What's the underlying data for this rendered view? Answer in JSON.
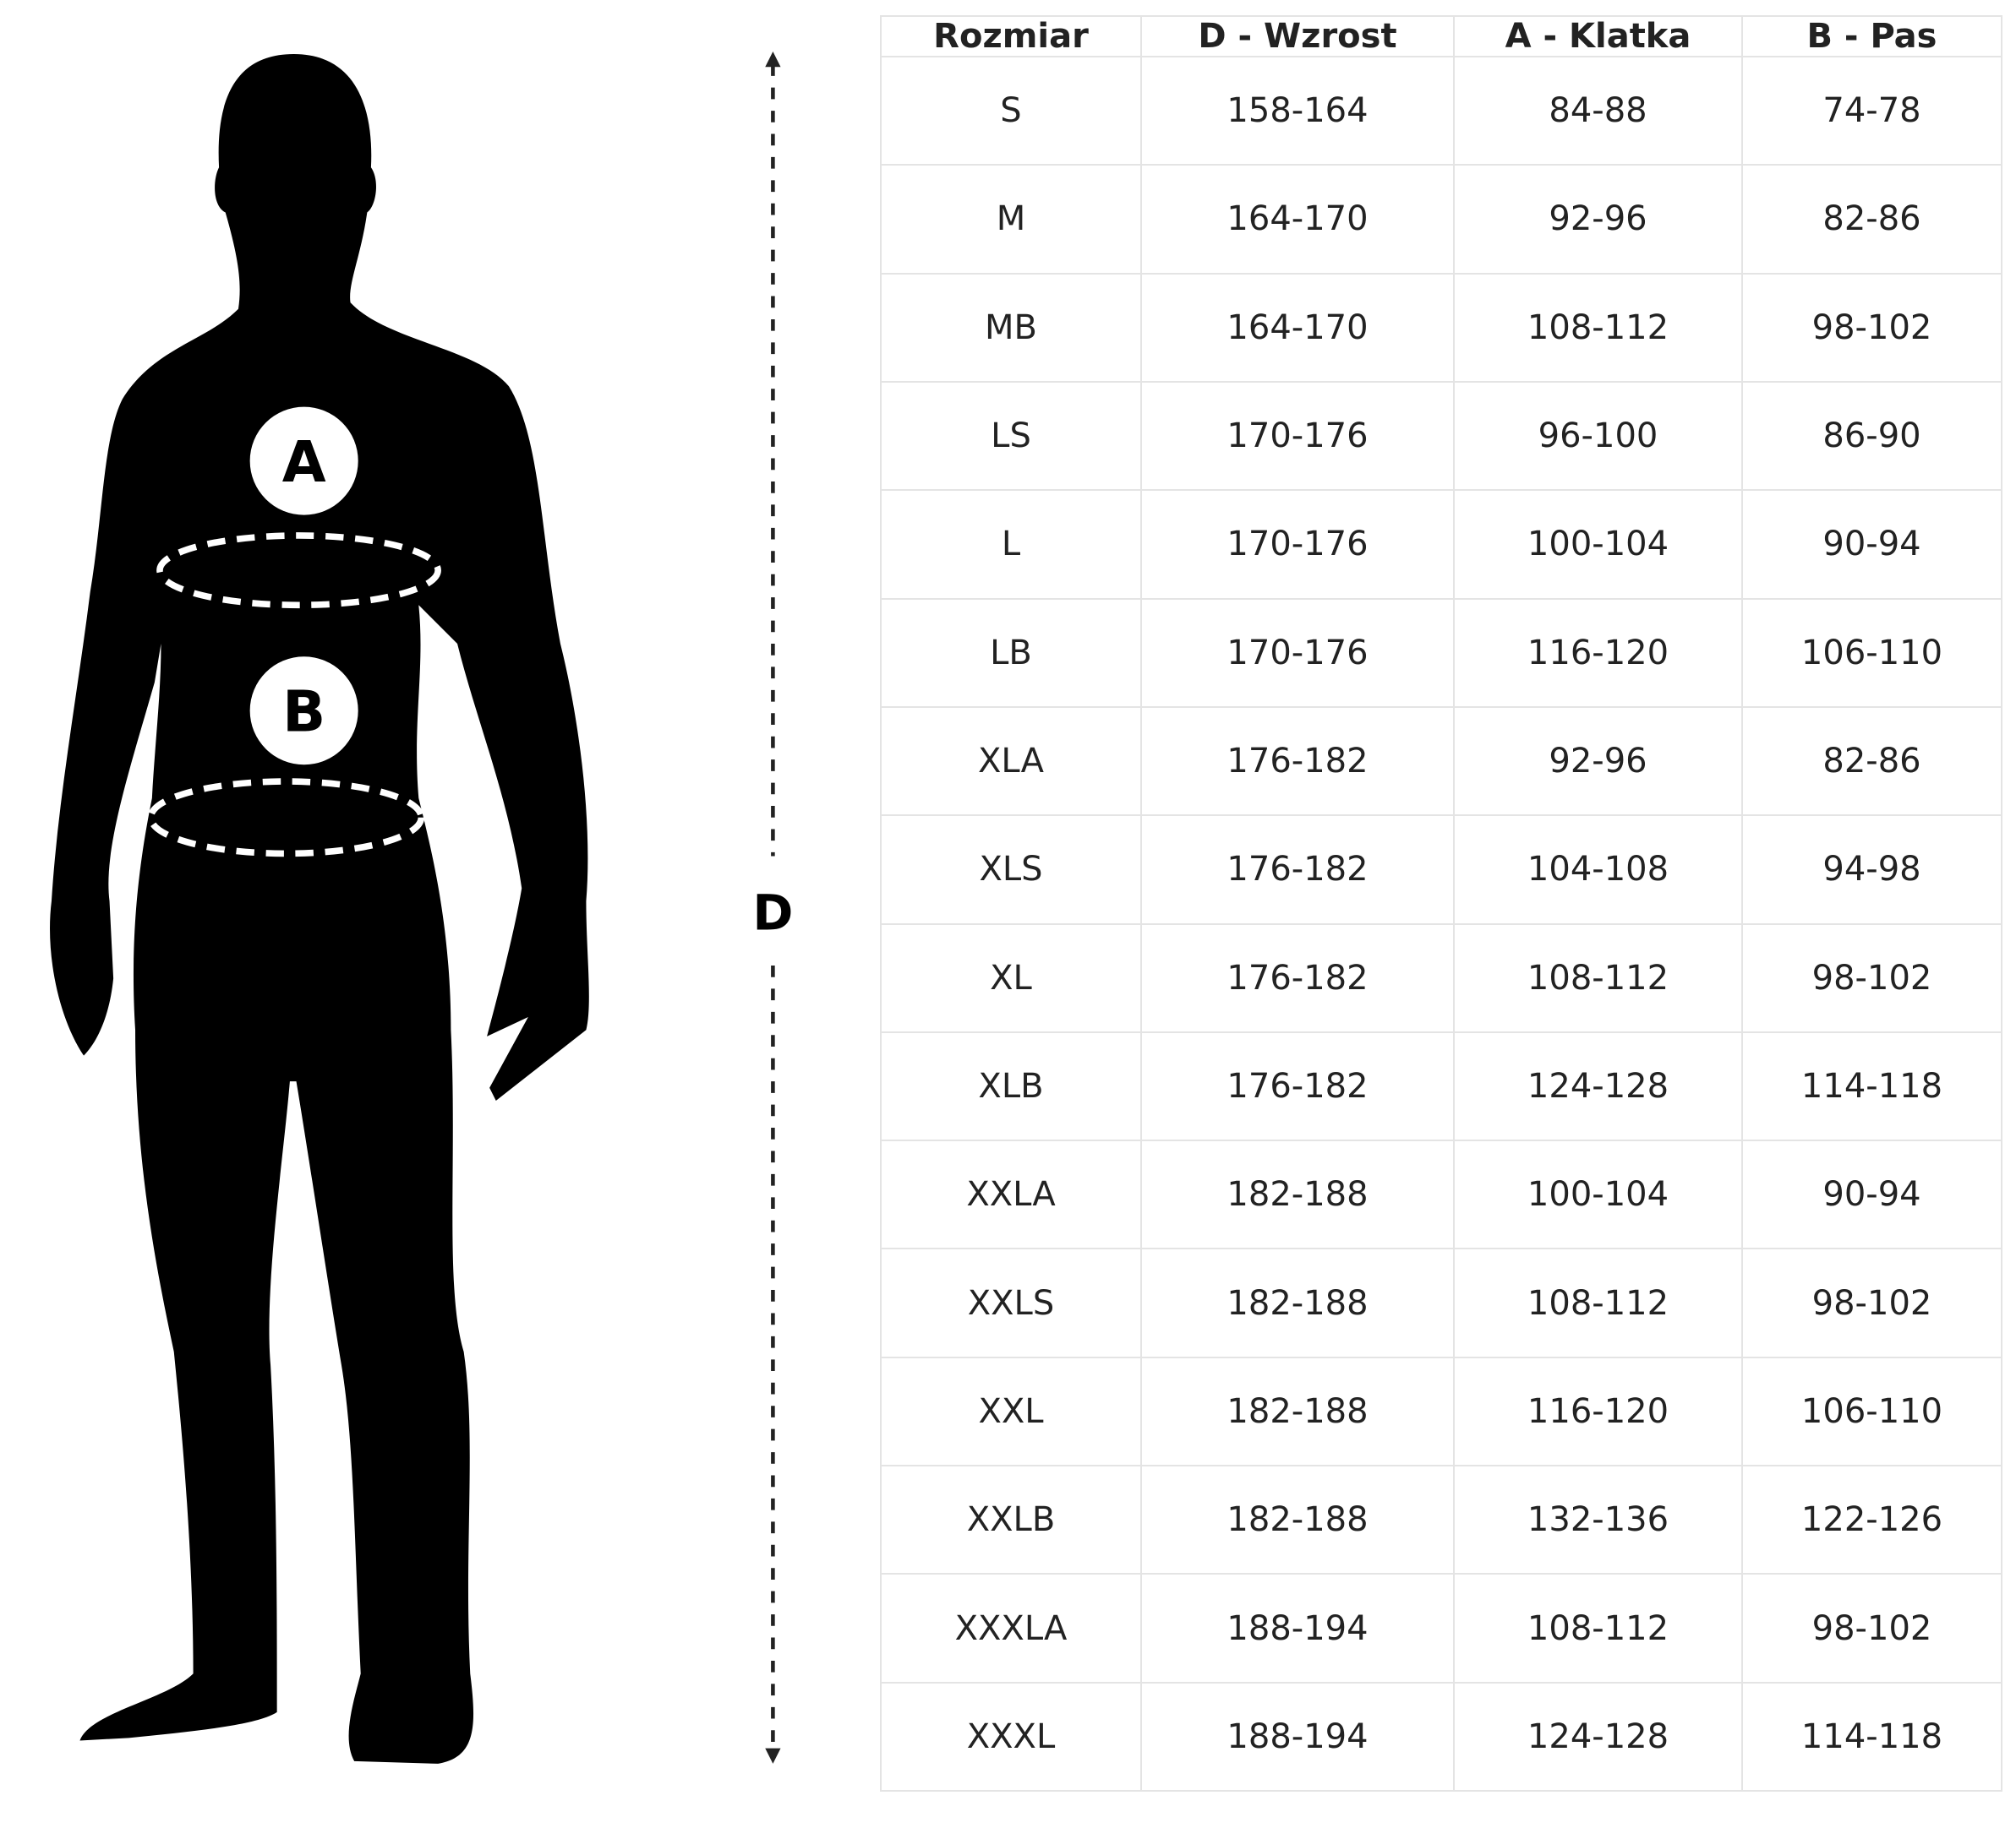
{
  "figure": {
    "label_a": "A",
    "label_b": "B",
    "label_d": "D"
  },
  "table": {
    "header": [
      "Rozmiar",
      "D - Wzrost",
      "A - Klatka",
      "B - Pas"
    ],
    "rows": [
      [
        "S",
        "158-164",
        "84-88",
        "74-78"
      ],
      [
        "M",
        "164-170",
        "92-96",
        "82-86"
      ],
      [
        "MB",
        "164-170",
        "108-112",
        "98-102"
      ],
      [
        "LS",
        "170-176",
        "96-100",
        "86-90"
      ],
      [
        "L",
        "170-176",
        "100-104",
        "90-94"
      ],
      [
        "LB",
        "170-176",
        "116-120",
        "106-110"
      ],
      [
        "XLA",
        "176-182",
        "92-96",
        "82-86"
      ],
      [
        "XLS",
        "176-182",
        "104-108",
        "94-98"
      ],
      [
        "XL",
        "176-182",
        "108-112",
        "98-102"
      ],
      [
        "XLB",
        "176-182",
        "124-128",
        "114-118"
      ],
      [
        "XXLA",
        "182-188",
        "100-104",
        "90-94"
      ],
      [
        "XXLS",
        "182-188",
        "108-112",
        "98-102"
      ],
      [
        "XXL",
        "182-188",
        "116-120",
        "106-110"
      ],
      [
        "XXLB",
        "182-188",
        "132-136",
        "122-126"
      ],
      [
        "XXXLA",
        "188-194",
        "108-112",
        "98-102"
      ],
      [
        "XXXL",
        "188-194",
        "124-128",
        "114-118"
      ]
    ]
  }
}
